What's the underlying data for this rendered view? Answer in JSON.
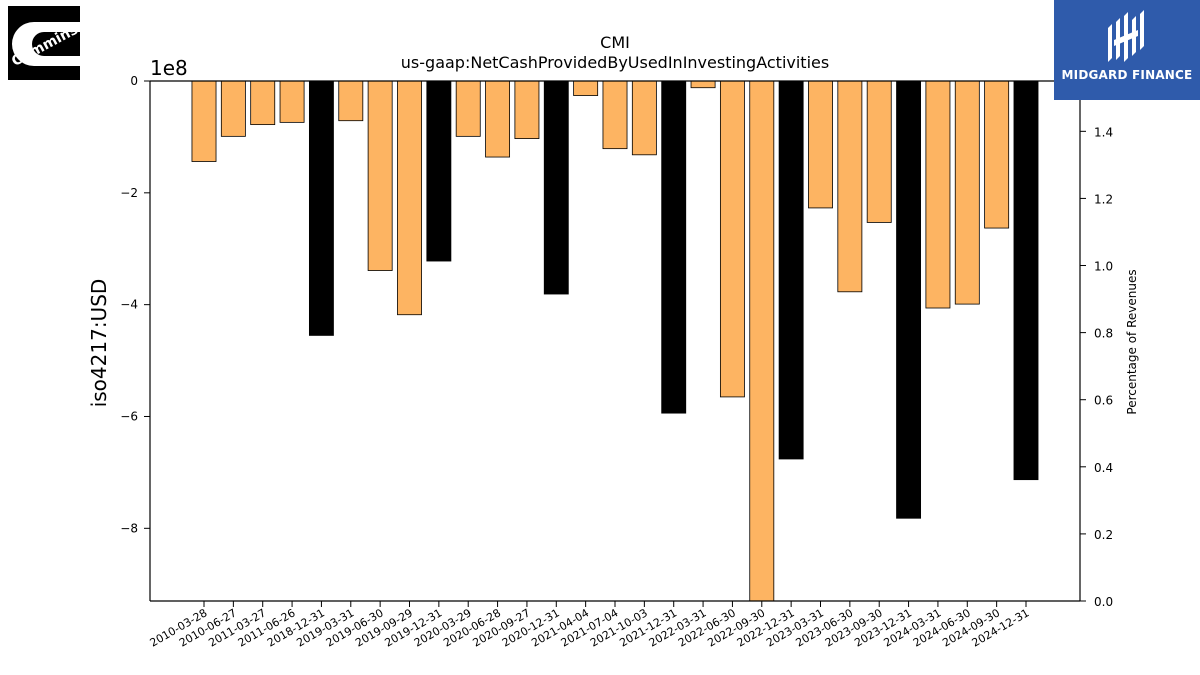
{
  "chart_data": {
    "type": "bar",
    "title": "CMI",
    "subtitle": "us-gaap:NetCashProvidedByUsedInInvestingActivities",
    "ylabel": "iso4217:USD",
    "y_offset_label": "1e8",
    "y2label": "Percentage of Revenues",
    "ylim": [
      -930000000,
      0
    ],
    "y2lim": [
      0.0,
      1.55
    ],
    "yticks": [
      "0",
      "−2",
      "−4",
      "−6",
      "−8"
    ],
    "y2ticks": [
      "0.0",
      "0.2",
      "0.4",
      "0.6",
      "0.8",
      "1.0",
      "1.2",
      "1.4"
    ],
    "categories": [
      "2010-03-28",
      "2010-06-27",
      "2011-03-27",
      "2011-06-26",
      "2018-12-31",
      "2019-03-31",
      "2019-06-30",
      "2019-09-29",
      "2019-12-31",
      "2020-03-29",
      "2020-06-28",
      "2020-09-27",
      "2020-12-31",
      "2021-04-04",
      "2021-07-04",
      "2021-10-03",
      "2021-12-31",
      "2022-03-31",
      "2022-06-30",
      "2022-09-30",
      "2022-12-31",
      "2023-03-31",
      "2023-06-30",
      "2023-09-30",
      "2023-12-31",
      "2024-03-31",
      "2024-06-30",
      "2024-09-30",
      "2024-12-31"
    ],
    "values": [
      -144000000,
      -99000000,
      -78000000,
      -74000000,
      -455000000,
      -71000000,
      -339000000,
      -418000000,
      -322000000,
      -99000000,
      -136000000,
      -103000000,
      -381000000,
      -26000000,
      -121000000,
      -132000000,
      -594000000,
      -12000000,
      -565000000,
      -930000000,
      -676000000,
      -227000000,
      -377000000,
      -253000000,
      -782000000,
      -406000000,
      -399000000,
      -263000000,
      -713000000
    ],
    "annual": [
      false,
      false,
      false,
      false,
      true,
      false,
      false,
      false,
      true,
      false,
      false,
      false,
      true,
      false,
      false,
      false,
      true,
      false,
      false,
      false,
      true,
      false,
      false,
      false,
      true,
      false,
      false,
      false,
      true
    ],
    "colors": {
      "quarterly": "#fdb462",
      "annual": "#000000",
      "edge": "#000000"
    }
  },
  "logos": {
    "left": {
      "text": "Cummins",
      "color": "#000000"
    },
    "right": {
      "text": "MIDGARD FINANCE",
      "color": "#2f5bab"
    }
  }
}
